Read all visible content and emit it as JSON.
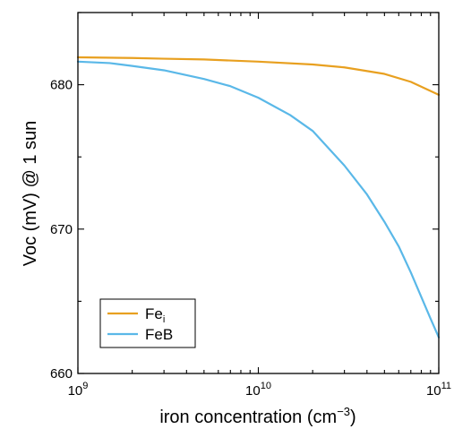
{
  "chart_data": {
    "type": "line",
    "xlabel": "iron concentration (cm",
    "xlabel_sup": "−3",
    "xlabel_end": ")",
    "ylabel": "Voc (mV) @ 1 sun",
    "xscale": "log",
    "xlim": [
      1000000000,
      100000000000
    ],
    "ylim": [
      660,
      685
    ],
    "x_ticks": [
      {
        "value": 1000000000,
        "base": "10",
        "exp": "9"
      },
      {
        "value": 10000000000,
        "base": "10",
        "exp": "10"
      },
      {
        "value": 100000000000,
        "base": "10",
        "exp": "11"
      }
    ],
    "y_ticks": [
      {
        "value": 660,
        "label": "660"
      },
      {
        "value": 670,
        "label": "670"
      },
      {
        "value": 680,
        "label": "680"
      }
    ],
    "grid": false,
    "legend": "bottom-left",
    "series": [
      {
        "base": "Fe",
        "sub": "i",
        "color": "#E8A020",
        "x": [
          1000000000,
          2000000000,
          3000000000,
          5000000000,
          10000000000,
          20000000000,
          30000000000,
          50000000000,
          70000000000,
          100000000000
        ],
        "y": [
          681.9,
          681.85,
          681.8,
          681.75,
          681.6,
          681.4,
          681.2,
          680.75,
          680.2,
          679.3
        ]
      },
      {
        "base": "FeB",
        "sub": "",
        "color": "#5AB8E8",
        "x": [
          1000000000,
          1500000000,
          2000000000,
          3000000000,
          5000000000,
          7000000000,
          10000000000,
          15000000000,
          20000000000,
          30000000000,
          40000000000,
          50000000000,
          60000000000,
          70000000000,
          80000000000,
          90000000000,
          100000000000
        ],
        "y": [
          681.6,
          681.5,
          681.3,
          681.0,
          680.4,
          679.9,
          679.1,
          677.9,
          676.8,
          674.4,
          672.4,
          670.5,
          668.8,
          667.0,
          665.3,
          663.8,
          662.5
        ]
      }
    ]
  }
}
